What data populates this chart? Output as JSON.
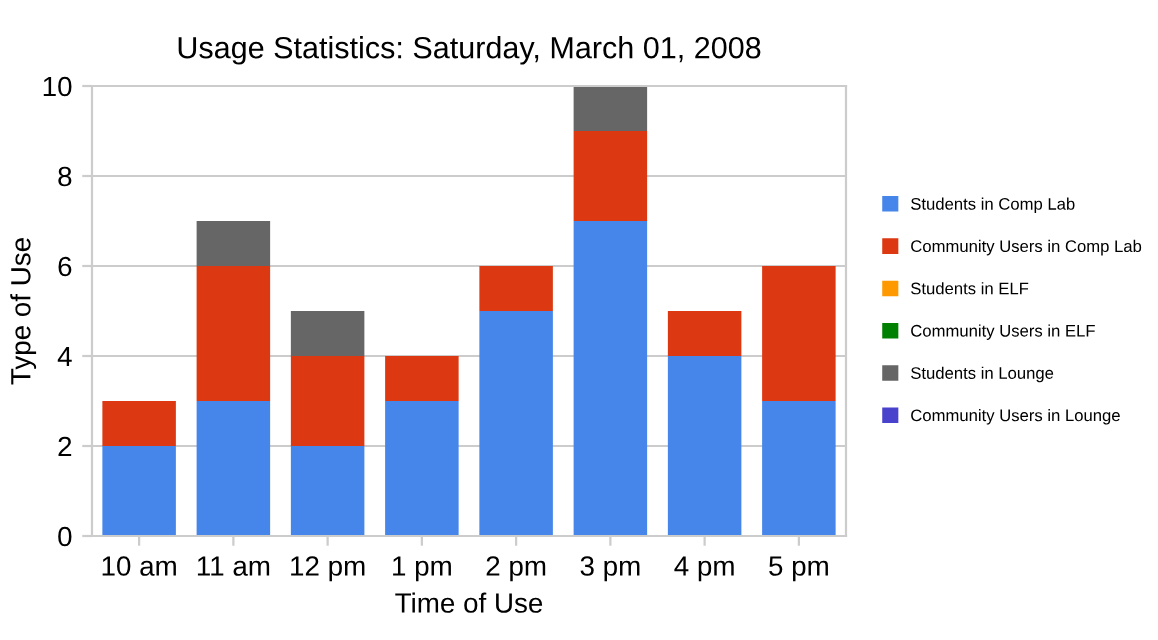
{
  "chart_data": {
    "type": "bar",
    "stacked": true,
    "title": "Usage Statistics: Saturday, March 01, 2008",
    "xlabel": "Time of Use",
    "ylabel": "Type of Use",
    "categories": [
      "10 am",
      "11 am",
      "12 pm",
      "1 pm",
      "2 pm",
      "3 pm",
      "4 pm",
      "5 pm"
    ],
    "series": [
      {
        "name": "Students in Comp Lab",
        "color": "#4685ea",
        "values": [
          2,
          3,
          2,
          3,
          5,
          7,
          4,
          3
        ]
      },
      {
        "name": "Community Users in Comp Lab",
        "color": "#dc3912",
        "values": [
          1,
          3,
          2,
          1,
          1,
          2,
          1,
          3
        ]
      },
      {
        "name": "Students in ELF",
        "color": "#ff9900",
        "values": [
          0,
          0,
          0,
          0,
          0,
          0,
          0,
          0
        ]
      },
      {
        "name": "Community Users in ELF",
        "color": "#008000",
        "values": [
          0,
          0,
          0,
          0,
          0,
          0,
          0,
          0
        ]
      },
      {
        "name": "Students in Lounge",
        "color": "#666666",
        "values": [
          0,
          1,
          1,
          0,
          0,
          1,
          0,
          0
        ]
      },
      {
        "name": "Community Users in Lounge",
        "color": "#4942cc",
        "values": [
          0,
          0,
          0,
          0,
          0,
          0,
          0,
          0
        ]
      }
    ],
    "ylim": [
      0,
      10
    ],
    "yticks": [
      0,
      2,
      4,
      6,
      8,
      10
    ],
    "grid": "y",
    "legend": "right"
  }
}
